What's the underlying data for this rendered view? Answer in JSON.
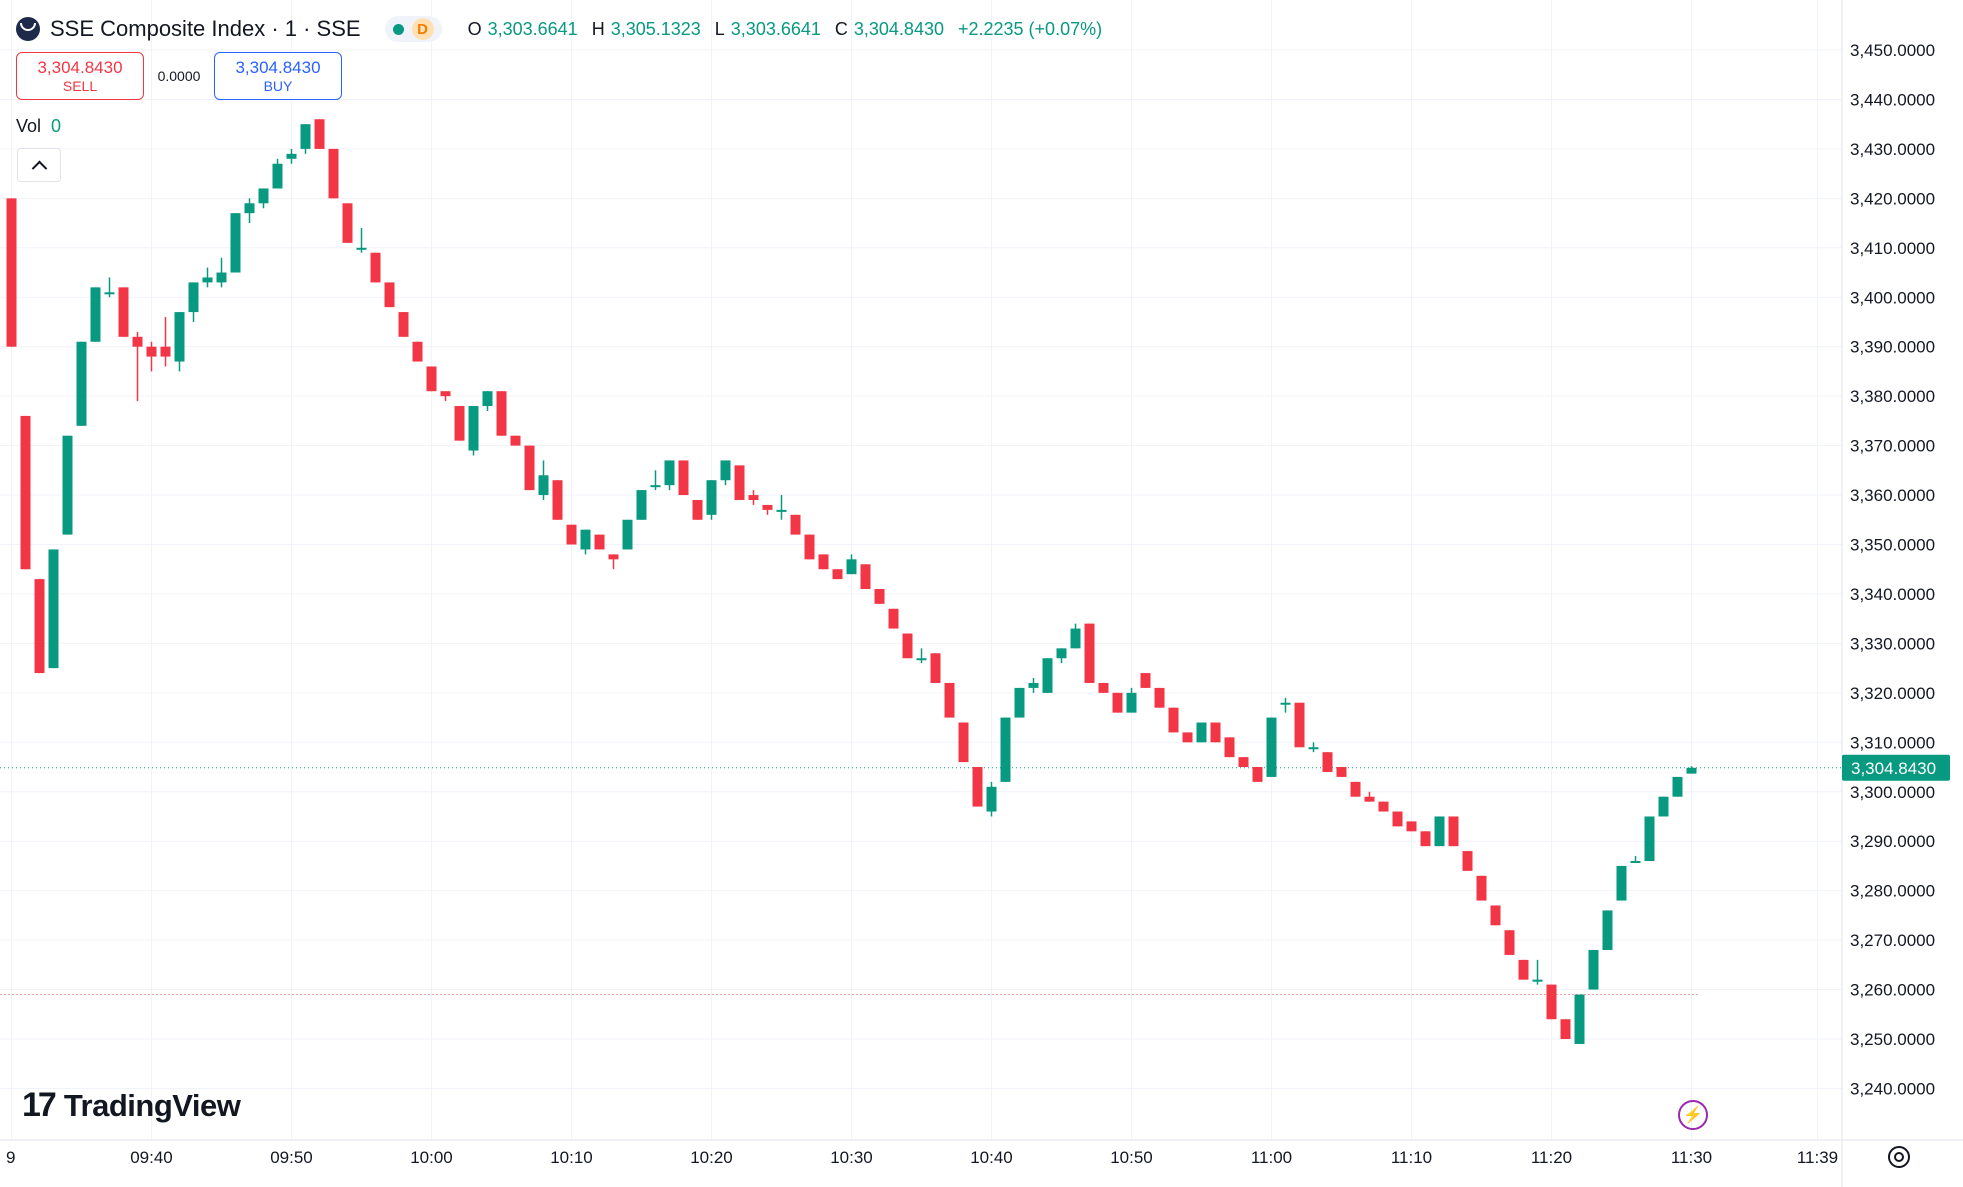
{
  "header": {
    "title": "SSE Composite Index · 1 · SSE",
    "status_letter": "D",
    "ohlc": {
      "o_label": "O",
      "o_value": "3,303.6641",
      "h_label": "H",
      "h_value": "3,305.1323",
      "l_label": "L",
      "l_value": "3,303.6641",
      "c_label": "C",
      "c_value": "3,304.8430",
      "change": "+2.2235 (+0.07%)"
    }
  },
  "trade": {
    "sell_price": "3,304.8430",
    "sell_label": "SELL",
    "spread": "0.0000",
    "buy_price": "3,304.8430",
    "buy_label": "BUY"
  },
  "volume": {
    "label": "Vol",
    "value": "0"
  },
  "branding": {
    "logo_text": "TradingView"
  },
  "colors": {
    "up": "#089981",
    "down": "#f23645",
    "grid": "#f0f3fa",
    "axis_text": "#131722"
  },
  "chart_data": {
    "type": "candlestick",
    "interval_minutes": 1,
    "last_price": 3304.843,
    "last_price_label": "3,304.8430",
    "prev_close_line": 3259.0,
    "ylim": [
      3233,
      3455
    ],
    "y_ticks": [
      3450,
      3440,
      3430,
      3420,
      3410,
      3400,
      3390,
      3380,
      3370,
      3360,
      3350,
      3340,
      3330,
      3320,
      3310,
      3300,
      3290,
      3280,
      3270,
      3260,
      3250,
      3240
    ],
    "y_tick_labels": [
      "3,450.0000",
      "3,440.0000",
      "3,430.0000",
      "3,420.0000",
      "3,410.0000",
      "3,400.0000",
      "3,390.0000",
      "3,380.0000",
      "3,370.0000",
      "3,360.0000",
      "3,350.0000",
      "3,340.0000",
      "3,330.0000",
      "3,320.0000",
      "3,310.0000",
      "3,300.0000",
      "3,290.0000",
      "3,280.0000",
      "3,270.0000",
      "3,260.0000",
      "3,250.0000",
      "3,240.0000"
    ],
    "x_tick_labels": [
      "9",
      "09:40",
      "09:50",
      "10:00",
      "10:10",
      "10:20",
      "10:30",
      "10:40",
      "10:50",
      "11:00",
      "11:10",
      "11:20",
      "11:30",
      "11:39"
    ],
    "x_tick_minutes": [
      30,
      40,
      50,
      60,
      70,
      80,
      90,
      100,
      110,
      120,
      130,
      140,
      150,
      159
    ],
    "candles": [
      {
        "t": 30,
        "o": 3420,
        "h": 3420,
        "l": 3390,
        "c": 3390
      },
      {
        "t": 31,
        "o": 3376,
        "h": 3376,
        "l": 3345,
        "c": 3345
      },
      {
        "t": 32,
        "o": 3343,
        "h": 3343,
        "l": 3324,
        "c": 3324
      },
      {
        "t": 33,
        "o": 3325,
        "h": 3349,
        "l": 3325,
        "c": 3349
      },
      {
        "t": 34,
        "o": 3352,
        "h": 3372,
        "l": 3352,
        "c": 3372
      },
      {
        "t": 35,
        "o": 3374,
        "h": 3391,
        "l": 3374,
        "c": 3391
      },
      {
        "t": 36,
        "o": 3391,
        "h": 3402,
        "l": 3391,
        "c": 3402
      },
      {
        "t": 37,
        "o": 3401,
        "h": 3404,
        "l": 3400,
        "c": 3401
      },
      {
        "t": 38,
        "o": 3402,
        "h": 3402,
        "l": 3392,
        "c": 3392
      },
      {
        "t": 39,
        "o": 3392,
        "h": 3393,
        "l": 3379,
        "c": 3390
      },
      {
        "t": 40,
        "o": 3390,
        "h": 3391,
        "l": 3385,
        "c": 3388
      },
      {
        "t": 41,
        "o": 3390,
        "h": 3396,
        "l": 3386,
        "c": 3388
      },
      {
        "t": 42,
        "o": 3387,
        "h": 3397,
        "l": 3385,
        "c": 3397
      },
      {
        "t": 43,
        "o": 3397,
        "h": 3403,
        "l": 3395,
        "c": 3403
      },
      {
        "t": 44,
        "o": 3403,
        "h": 3406,
        "l": 3402,
        "c": 3404
      },
      {
        "t": 45,
        "o": 3403,
        "h": 3408,
        "l": 3402,
        "c": 3405
      },
      {
        "t": 46,
        "o": 3405,
        "h": 3417,
        "l": 3405,
        "c": 3417
      },
      {
        "t": 47,
        "o": 3417,
        "h": 3420,
        "l": 3415,
        "c": 3419
      },
      {
        "t": 48,
        "o": 3419,
        "h": 3422,
        "l": 3418,
        "c": 3422
      },
      {
        "t": 49,
        "o": 3422,
        "h": 3428,
        "l": 3422,
        "c": 3427
      },
      {
        "t": 50,
        "o": 3428,
        "h": 3430,
        "l": 3427,
        "c": 3429
      },
      {
        "t": 51,
        "o": 3430,
        "h": 3435,
        "l": 3429,
        "c": 3435
      },
      {
        "t": 52,
        "o": 3436,
        "h": 3436,
        "l": 3430,
        "c": 3430
      },
      {
        "t": 53,
        "o": 3430,
        "h": 3430,
        "l": 3420,
        "c": 3420
      },
      {
        "t": 54,
        "o": 3419,
        "h": 3419,
        "l": 3411,
        "c": 3411
      },
      {
        "t": 55,
        "o": 3410,
        "h": 3414,
        "l": 3409,
        "c": 3410
      },
      {
        "t": 56,
        "o": 3409,
        "h": 3409,
        "l": 3403,
        "c": 3403
      },
      {
        "t": 57,
        "o": 3403,
        "h": 3403,
        "l": 3398,
        "c": 3398
      },
      {
        "t": 58,
        "o": 3397,
        "h": 3397,
        "l": 3392,
        "c": 3392
      },
      {
        "t": 59,
        "o": 3391,
        "h": 3391,
        "l": 3387,
        "c": 3387
      },
      {
        "t": 60,
        "o": 3386,
        "h": 3386,
        "l": 3381,
        "c": 3381
      },
      {
        "t": 61,
        "o": 3381,
        "h": 3381,
        "l": 3379,
        "c": 3380
      },
      {
        "t": 62,
        "o": 3378,
        "h": 3378,
        "l": 3371,
        "c": 3371
      },
      {
        "t": 63,
        "o": 3369,
        "h": 3378,
        "l": 3368,
        "c": 3378
      },
      {
        "t": 64,
        "o": 3378,
        "h": 3381,
        "l": 3377,
        "c": 3381
      },
      {
        "t": 65,
        "o": 3381,
        "h": 3381,
        "l": 3372,
        "c": 3372
      },
      {
        "t": 66,
        "o": 3372,
        "h": 3372,
        "l": 3370,
        "c": 3370
      },
      {
        "t": 67,
        "o": 3370,
        "h": 3370,
        "l": 3361,
        "c": 3361
      },
      {
        "t": 68,
        "o": 3360,
        "h": 3367,
        "l": 3359,
        "c": 3364
      },
      {
        "t": 69,
        "o": 3363,
        "h": 3363,
        "l": 3355,
        "c": 3355
      },
      {
        "t": 70,
        "o": 3354,
        "h": 3354,
        "l": 3350,
        "c": 3350
      },
      {
        "t": 71,
        "o": 3349,
        "h": 3353,
        "l": 3348,
        "c": 3353
      },
      {
        "t": 72,
        "o": 3352,
        "h": 3352,
        "l": 3349,
        "c": 3349
      },
      {
        "t": 73,
        "o": 3348,
        "h": 3348,
        "l": 3345,
        "c": 3347
      },
      {
        "t": 74,
        "o": 3349,
        "h": 3355,
        "l": 3349,
        "c": 3355
      },
      {
        "t": 75,
        "o": 3355,
        "h": 3361,
        "l": 3355,
        "c": 3361
      },
      {
        "t": 76,
        "o": 3362,
        "h": 3365,
        "l": 3361,
        "c": 3362
      },
      {
        "t": 77,
        "o": 3362,
        "h": 3367,
        "l": 3361,
        "c": 3367
      },
      {
        "t": 78,
        "o": 3367,
        "h": 3367,
        "l": 3360,
        "c": 3360
      },
      {
        "t": 79,
        "o": 3359,
        "h": 3359,
        "l": 3355,
        "c": 3355
      },
      {
        "t": 80,
        "o": 3356,
        "h": 3363,
        "l": 3355,
        "c": 3363
      },
      {
        "t": 81,
        "o": 3363,
        "h": 3367,
        "l": 3362,
        "c": 3367
      },
      {
        "t": 82,
        "o": 3366,
        "h": 3366,
        "l": 3359,
        "c": 3359
      },
      {
        "t": 83,
        "o": 3360,
        "h": 3361,
        "l": 3358,
        "c": 3359
      },
      {
        "t": 84,
        "o": 3358,
        "h": 3358,
        "l": 3356,
        "c": 3357
      },
      {
        "t": 85,
        "o": 3357,
        "h": 3360,
        "l": 3355,
        "c": 3357
      },
      {
        "t": 86,
        "o": 3356,
        "h": 3356,
        "l": 3352,
        "c": 3352
      },
      {
        "t": 87,
        "o": 3352,
        "h": 3352,
        "l": 3347,
        "c": 3347
      },
      {
        "t": 88,
        "o": 3348,
        "h": 3348,
        "l": 3345,
        "c": 3345
      },
      {
        "t": 89,
        "o": 3345,
        "h": 3345,
        "l": 3343,
        "c": 3343
      },
      {
        "t": 90,
        "o": 3344,
        "h": 3348,
        "l": 3344,
        "c": 3347
      },
      {
        "t": 91,
        "o": 3346,
        "h": 3346,
        "l": 3341,
        "c": 3341
      },
      {
        "t": 92,
        "o": 3341,
        "h": 3341,
        "l": 3338,
        "c": 3338
      },
      {
        "t": 93,
        "o": 3337,
        "h": 3337,
        "l": 3333,
        "c": 3333
      },
      {
        "t": 94,
        "o": 3332,
        "h": 3332,
        "l": 3327,
        "c": 3327
      },
      {
        "t": 95,
        "o": 3327,
        "h": 3329,
        "l": 3326,
        "c": 3327
      },
      {
        "t": 96,
        "o": 3328,
        "h": 3328,
        "l": 3322,
        "c": 3322
      },
      {
        "t": 97,
        "o": 3322,
        "h": 3322,
        "l": 3315,
        "c": 3315
      },
      {
        "t": 98,
        "o": 3314,
        "h": 3314,
        "l": 3306,
        "c": 3306
      },
      {
        "t": 99,
        "o": 3305,
        "h": 3305,
        "l": 3297,
        "c": 3297
      },
      {
        "t": 100,
        "o": 3296,
        "h": 3302,
        "l": 3295,
        "c": 3301
      },
      {
        "t": 101,
        "o": 3302,
        "h": 3315,
        "l": 3302,
        "c": 3315
      },
      {
        "t": 102,
        "o": 3315,
        "h": 3321,
        "l": 3315,
        "c": 3321
      },
      {
        "t": 103,
        "o": 3321,
        "h": 3323,
        "l": 3320,
        "c": 3322
      },
      {
        "t": 104,
        "o": 3320,
        "h": 3327,
        "l": 3320,
        "c": 3327
      },
      {
        "t": 105,
        "o": 3327,
        "h": 3329,
        "l": 3326,
        "c": 3329
      },
      {
        "t": 106,
        "o": 3329,
        "h": 3334,
        "l": 3329,
        "c": 3333
      },
      {
        "t": 107,
        "o": 3334,
        "h": 3334,
        "l": 3322,
        "c": 3322
      },
      {
        "t": 108,
        "o": 3322,
        "h": 3322,
        "l": 3320,
        "c": 3320
      },
      {
        "t": 109,
        "o": 3320,
        "h": 3320,
        "l": 3316,
        "c": 3316
      },
      {
        "t": 110,
        "o": 3316,
        "h": 3321,
        "l": 3316,
        "c": 3320
      },
      {
        "t": 111,
        "o": 3324,
        "h": 3324,
        "l": 3321,
        "c": 3321
      },
      {
        "t": 112,
        "o": 3321,
        "h": 3321,
        "l": 3317,
        "c": 3317
      },
      {
        "t": 113,
        "o": 3317,
        "h": 3317,
        "l": 3312,
        "c": 3312
      },
      {
        "t": 114,
        "o": 3312,
        "h": 3312,
        "l": 3310,
        "c": 3310
      },
      {
        "t": 115,
        "o": 3310,
        "h": 3314,
        "l": 3310,
        "c": 3314
      },
      {
        "t": 116,
        "o": 3314,
        "h": 3314,
        "l": 3310,
        "c": 3310
      },
      {
        "t": 117,
        "o": 3311,
        "h": 3311,
        "l": 3307,
        "c": 3307
      },
      {
        "t": 118,
        "o": 3307,
        "h": 3307,
        "l": 3305,
        "c": 3305
      },
      {
        "t": 119,
        "o": 3305,
        "h": 3305,
        "l": 3302,
        "c": 3302
      },
      {
        "t": 120,
        "o": 3303,
        "h": 3315,
        "l": 3303,
        "c": 3315
      },
      {
        "t": 121,
        "o": 3318,
        "h": 3319,
        "l": 3316,
        "c": 3318
      },
      {
        "t": 122,
        "o": 3318,
        "h": 3318,
        "l": 3309,
        "c": 3309
      },
      {
        "t": 123,
        "o": 3309,
        "h": 3310,
        "l": 3308,
        "c": 3309
      },
      {
        "t": 124,
        "o": 3308,
        "h": 3308,
        "l": 3304,
        "c": 3304
      },
      {
        "t": 125,
        "o": 3305,
        "h": 3305,
        "l": 3303,
        "c": 3303
      },
      {
        "t": 126,
        "o": 3302,
        "h": 3302,
        "l": 3299,
        "c": 3299
      },
      {
        "t": 127,
        "o": 3299,
        "h": 3300,
        "l": 3298,
        "c": 3298
      },
      {
        "t": 128,
        "o": 3298,
        "h": 3298,
        "l": 3296,
        "c": 3296
      },
      {
        "t": 129,
        "o": 3296,
        "h": 3296,
        "l": 3293,
        "c": 3293
      },
      {
        "t": 130,
        "o": 3294,
        "h": 3294,
        "l": 3292,
        "c": 3292
      },
      {
        "t": 131,
        "o": 3292,
        "h": 3292,
        "l": 3289,
        "c": 3289
      },
      {
        "t": 132,
        "o": 3289,
        "h": 3295,
        "l": 3289,
        "c": 3295
      },
      {
        "t": 133,
        "o": 3295,
        "h": 3295,
        "l": 3289,
        "c": 3289
      },
      {
        "t": 134,
        "o": 3288,
        "h": 3288,
        "l": 3284,
        "c": 3284
      },
      {
        "t": 135,
        "o": 3283,
        "h": 3283,
        "l": 3278,
        "c": 3278
      },
      {
        "t": 136,
        "o": 3277,
        "h": 3277,
        "l": 3273,
        "c": 3273
      },
      {
        "t": 137,
        "o": 3272,
        "h": 3272,
        "l": 3267,
        "c": 3267
      },
      {
        "t": 138,
        "o": 3266,
        "h": 3266,
        "l": 3262,
        "c": 3262
      },
      {
        "t": 139,
        "o": 3262,
        "h": 3266,
        "l": 3261,
        "c": 3262
      },
      {
        "t": 140,
        "o": 3261,
        "h": 3261,
        "l": 3254,
        "c": 3254
      },
      {
        "t": 141,
        "o": 3254,
        "h": 3254,
        "l": 3250,
        "c": 3250
      },
      {
        "t": 142,
        "o": 3249,
        "h": 3259,
        "l": 3249,
        "c": 3259
      },
      {
        "t": 143,
        "o": 3260,
        "h": 3268,
        "l": 3260,
        "c": 3268
      },
      {
        "t": 144,
        "o": 3268,
        "h": 3276,
        "l": 3268,
        "c": 3276
      },
      {
        "t": 145,
        "o": 3278,
        "h": 3285,
        "l": 3278,
        "c": 3285
      },
      {
        "t": 146,
        "o": 3286,
        "h": 3287,
        "l": 3286,
        "c": 3286
      },
      {
        "t": 147,
        "o": 3286,
        "h": 3295,
        "l": 3286,
        "c": 3295
      },
      {
        "t": 148,
        "o": 3295,
        "h": 3299,
        "l": 3295,
        "c": 3299
      },
      {
        "t": 149,
        "o": 3299,
        "h": 3303,
        "l": 3299,
        "c": 3303
      },
      {
        "t": 150,
        "o": 3303.6641,
        "h": 3305.1323,
        "l": 3303.6641,
        "c": 3304.843
      }
    ]
  }
}
